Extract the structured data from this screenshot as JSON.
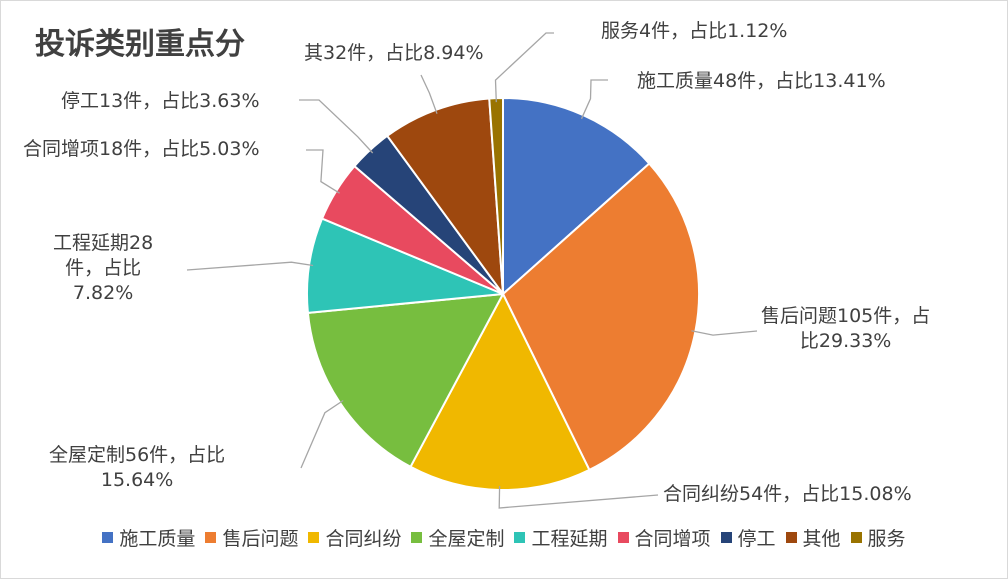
{
  "chart_data": {
    "type": "pie",
    "title": "投诉类别重点分",
    "categories": [
      "施工质量",
      "售后问题",
      "合同纠纷",
      "全屋定制",
      "工程延期",
      "合同增项",
      "停工",
      "其他",
      "服务"
    ],
    "values": [
      48,
      105,
      54,
      56,
      28,
      18,
      13,
      32,
      4
    ],
    "percents": [
      13.41,
      29.33,
      15.08,
      15.64,
      7.82,
      5.03,
      3.63,
      8.94,
      1.12
    ],
    "colors": [
      "#4472C4",
      "#ED7D31",
      "#F0B800",
      "#77BE3F",
      "#2EC4B6",
      "#E84A5F",
      "#264478",
      "#9E480E",
      "#997300"
    ],
    "data_labels": [
      [
        "施工质量48件，占比13.41%"
      ],
      [
        "售后问题105件，占",
        "比29.33%"
      ],
      [
        "合同纠纷54件，占比15.08%"
      ],
      [
        "全屋定制56件，占比",
        "15.64%"
      ],
      [
        "工程延期28",
        "件，占比",
        "7.82%"
      ],
      [
        "合同增项18件，占比5.03%"
      ],
      [
        "停工13件，占比3.63%"
      ],
      [
        "其32件，占比8.94%"
      ],
      [
        "服务4件，占比1.12%"
      ]
    ],
    "legend": {
      "position": "bottom",
      "entries": [
        "施工质量",
        "售后问题",
        "合同纠纷",
        "全屋定制",
        "工程延期",
        "合同增项",
        "停工",
        "其他",
        "服务"
      ]
    }
  }
}
